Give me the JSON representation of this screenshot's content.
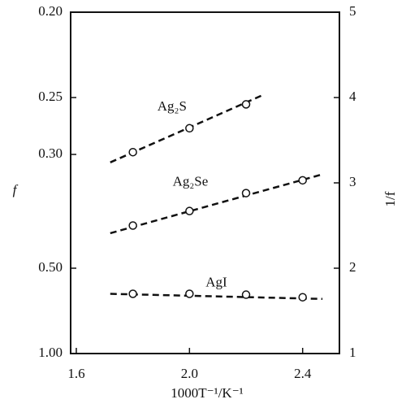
{
  "chart_data": {
    "type": "scatter",
    "xlabel": "1000T⁻¹/K⁻¹",
    "ylabel": "f",
    "y2label": "1/f",
    "xlim": [
      1.58,
      2.53
    ],
    "xticks": [
      1.6,
      {
        "value": 2,
        "label": "2.0"
      },
      2.4
    ],
    "yscale": "reciprocal",
    "ylim": [
      {
        "value": 1,
        "label": "1.00"
      },
      {
        "value": 0.2,
        "label": "0.20"
      }
    ],
    "yticks": [
      {
        "value": 0.2,
        "label": "0.20"
      },
      0.25,
      {
        "value": 0.3,
        "label": "0.30"
      },
      {
        "value": 0.5,
        "label": "0.50"
      },
      {
        "value": 1,
        "label": "1.00"
      }
    ],
    "y2lim": [
      1,
      5
    ],
    "y2ticks": [
      1,
      2,
      3,
      4,
      5
    ],
    "color": "#111111",
    "series": [
      {
        "name": "Ag₂S",
        "axis": "y2",
        "x": [
          1.8,
          2.0,
          2.2
        ],
        "values": [
          3.36,
          3.64,
          3.92
        ],
        "fit": {
          "x": [
            1.72,
            2.26
          ],
          "values": [
            3.24,
            4.03
          ]
        }
      },
      {
        "name": "Ag₂Se",
        "axis": "y2",
        "x": [
          1.8,
          2.0,
          2.2,
          2.4
        ],
        "values": [
          2.5,
          2.67,
          2.88,
          3.03
        ],
        "fit": {
          "x": [
            1.72,
            2.47
          ],
          "values": [
            2.41,
            3.1
          ]
        }
      },
      {
        "name": "AgI",
        "axis": "y2",
        "x": [
          1.8,
          2.0,
          2.2,
          2.4
        ],
        "values": [
          1.7,
          1.7,
          1.69,
          1.66
        ],
        "fit": {
          "x": [
            1.72,
            2.47
          ],
          "values": [
            1.7,
            1.64
          ]
        }
      }
    ]
  }
}
